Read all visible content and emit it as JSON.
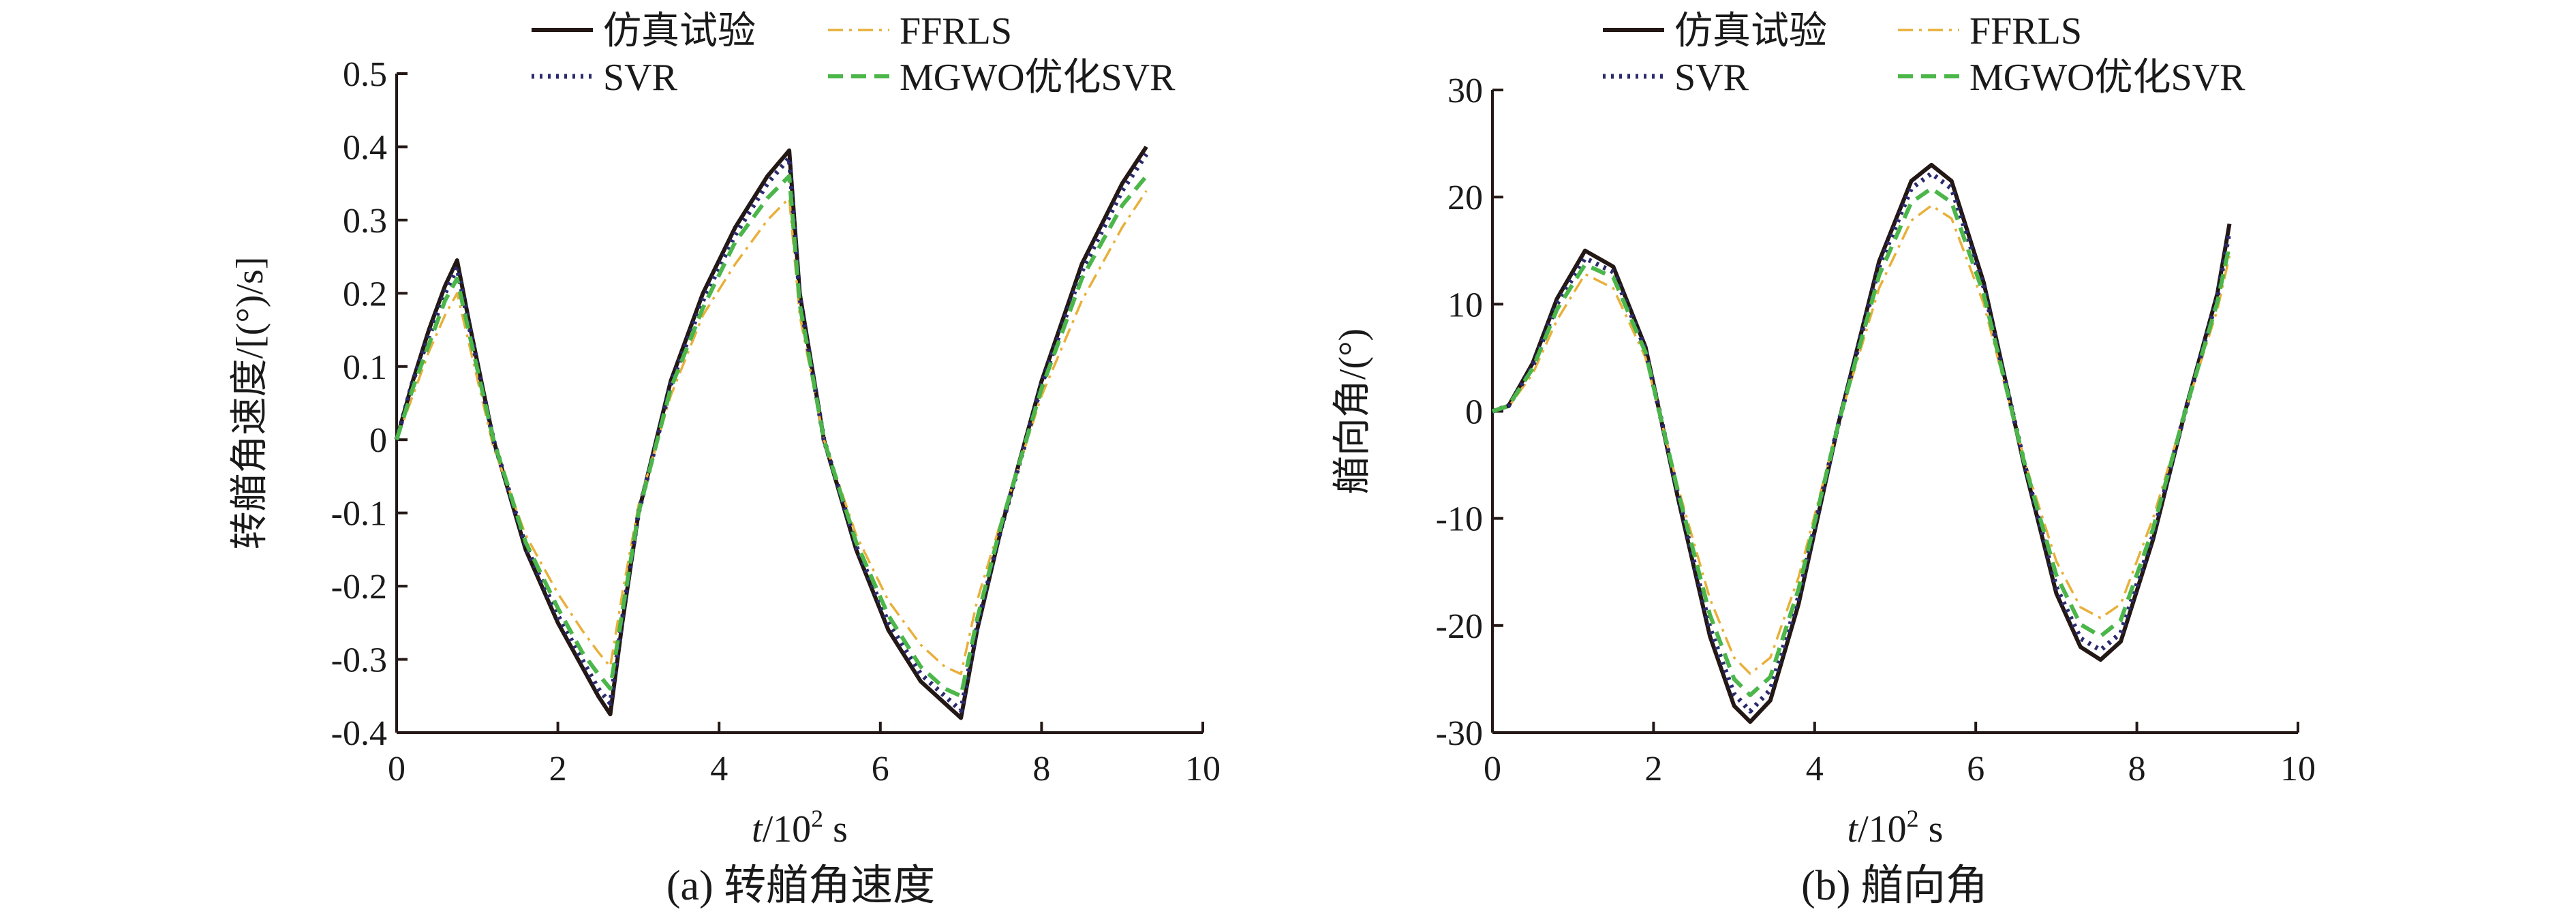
{
  "chart_data": [
    {
      "id": "a",
      "type": "line",
      "caption": "(a) 转艏角速度",
      "xlabel_italic": "t",
      "xlabel_rest": "/10",
      "xlabel_sup": "2",
      "xlabel_unit": " s",
      "ylabel": "转艏角速度/[(°)/s]",
      "xlim": [
        0,
        10
      ],
      "ylim": [
        -0.4,
        0.5
      ],
      "xticks": [
        "0",
        "2",
        "4",
        "6",
        "8",
        "10"
      ],
      "yticks": [
        "0.5",
        "0.4",
        "0.3",
        "0.2",
        "0.1",
        "0",
        "-0.1",
        "-0.2",
        "-0.3",
        "-0.4"
      ],
      "grid": false,
      "legend_position": "top",
      "series": [
        {
          "name": "仿真试验",
          "color": "#231815",
          "style": "solid",
          "x": [
            0,
            0.2,
            0.4,
            0.6,
            0.75,
            0.9,
            1.2,
            1.6,
            2.0,
            2.3,
            2.5,
            2.65,
            2.8,
            3.0,
            3.4,
            3.8,
            4.2,
            4.6,
            4.87,
            5.0,
            5.3,
            5.7,
            6.1,
            6.5,
            6.8,
            7.0,
            7.2,
            7.5,
            8.0,
            8.5,
            9.0,
            9.3
          ],
          "y": [
            0,
            0.08,
            0.15,
            0.21,
            0.245,
            0.16,
            0.0,
            -0.15,
            -0.25,
            -0.31,
            -0.35,
            -0.375,
            -0.25,
            -0.1,
            0.08,
            0.2,
            0.29,
            0.36,
            0.395,
            0.2,
            0.0,
            -0.15,
            -0.26,
            -0.33,
            -0.36,
            -0.38,
            -0.26,
            -0.12,
            0.08,
            0.24,
            0.35,
            0.4
          ]
        },
        {
          "name": "FFRLS",
          "color": "#e8b03a",
          "style": "dashdot",
          "x": [
            0,
            0.2,
            0.4,
            0.6,
            0.75,
            0.9,
            1.2,
            1.6,
            2.0,
            2.3,
            2.5,
            2.65,
            2.8,
            3.0,
            3.4,
            3.8,
            4.2,
            4.6,
            4.87,
            5.0,
            5.3,
            5.7,
            6.1,
            6.5,
            6.8,
            7.0,
            7.2,
            7.5,
            8.0,
            8.5,
            9.0,
            9.3
          ],
          "y": [
            0,
            0.06,
            0.12,
            0.17,
            0.2,
            0.13,
            -0.01,
            -0.13,
            -0.21,
            -0.26,
            -0.29,
            -0.31,
            -0.21,
            -0.09,
            0.06,
            0.17,
            0.24,
            0.3,
            0.33,
            0.17,
            0.0,
            -0.13,
            -0.22,
            -0.28,
            -0.31,
            -0.32,
            -0.22,
            -0.11,
            0.06,
            0.19,
            0.29,
            0.34
          ]
        },
        {
          "name": "SVR",
          "color": "#2b2a6e",
          "style": "dotted",
          "x": [
            0,
            0.2,
            0.4,
            0.6,
            0.75,
            0.9,
            1.2,
            1.6,
            2.0,
            2.3,
            2.5,
            2.65,
            2.8,
            3.0,
            3.4,
            3.8,
            4.2,
            4.6,
            4.87,
            5.0,
            5.3,
            5.7,
            6.1,
            6.5,
            6.8,
            7.0,
            7.2,
            7.5,
            8.0,
            8.5,
            9.0,
            9.3
          ],
          "y": [
            0,
            0.08,
            0.14,
            0.2,
            0.235,
            0.155,
            0.0,
            -0.145,
            -0.24,
            -0.3,
            -0.34,
            -0.36,
            -0.245,
            -0.1,
            0.075,
            0.19,
            0.28,
            0.35,
            0.385,
            0.195,
            0.0,
            -0.145,
            -0.25,
            -0.32,
            -0.35,
            -0.37,
            -0.255,
            -0.12,
            0.075,
            0.23,
            0.34,
            0.39
          ]
        },
        {
          "name": "MGWO优化SVR",
          "color": "#4bb649",
          "style": "dashed",
          "x": [
            0,
            0.2,
            0.4,
            0.6,
            0.75,
            0.9,
            1.2,
            1.6,
            2.0,
            2.3,
            2.5,
            2.65,
            2.8,
            3.0,
            3.4,
            3.8,
            4.2,
            4.6,
            4.87,
            5.0,
            5.3,
            5.7,
            6.1,
            6.5,
            6.8,
            7.0,
            7.2,
            7.5,
            8.0,
            8.5,
            9.0,
            9.3
          ],
          "y": [
            0,
            0.07,
            0.13,
            0.19,
            0.22,
            0.145,
            0.0,
            -0.14,
            -0.23,
            -0.29,
            -0.32,
            -0.34,
            -0.235,
            -0.1,
            0.07,
            0.18,
            0.27,
            0.33,
            0.36,
            0.185,
            0.0,
            -0.14,
            -0.24,
            -0.31,
            -0.34,
            -0.35,
            -0.245,
            -0.115,
            0.07,
            0.22,
            0.32,
            0.36
          ]
        }
      ]
    },
    {
      "id": "b",
      "type": "line",
      "caption": "(b) 艏向角",
      "xlabel_italic": "t",
      "xlabel_rest": "/10",
      "xlabel_sup": "2",
      "xlabel_unit": " s",
      "ylabel": "艏向角/(°)",
      "xlim": [
        0,
        10
      ],
      "ylim": [
        -30,
        30
      ],
      "xticks": [
        "0",
        "2",
        "4",
        "6",
        "8",
        "10"
      ],
      "yticks": [
        "30",
        "20",
        "10",
        "0",
        "-10",
        "-20",
        "-30"
      ],
      "grid": false,
      "legend_position": "top",
      "series": [
        {
          "name": "仿真试验",
          "color": "#231815",
          "style": "solid",
          "x": [
            0,
            0.2,
            0.5,
            0.8,
            1.15,
            1.5,
            1.9,
            2.3,
            2.7,
            3.0,
            3.2,
            3.45,
            3.8,
            4.3,
            4.8,
            5.2,
            5.45,
            5.7,
            6.1,
            6.6,
            7.0,
            7.3,
            7.55,
            7.8,
            8.2,
            8.6,
            9.0,
            9.15
          ],
          "y": [
            0,
            0.5,
            4.5,
            10.5,
            15,
            13.5,
            6,
            -8,
            -21,
            -27.5,
            -29,
            -27,
            -18,
            -1,
            14,
            21.5,
            23,
            21.5,
            12,
            -5,
            -17,
            -22,
            -23.2,
            -21.5,
            -12,
            0,
            11,
            17.5
          ]
        },
        {
          "name": "FFRLS",
          "color": "#e8b03a",
          "style": "dashdot",
          "x": [
            0,
            0.2,
            0.5,
            0.8,
            1.15,
            1.5,
            1.9,
            2.3,
            2.7,
            3.0,
            3.2,
            3.45,
            3.8,
            4.3,
            4.8,
            5.2,
            5.45,
            5.7,
            6.1,
            6.6,
            7.0,
            7.3,
            7.55,
            7.8,
            8.2,
            8.6,
            9.0,
            9.15
          ],
          "y": [
            0,
            0.4,
            3.5,
            8.5,
            12.8,
            11.5,
            5,
            -7,
            -17.5,
            -23,
            -24.5,
            -23,
            -15.5,
            -1,
            11.5,
            17.8,
            19.2,
            18,
            10,
            -4.5,
            -14,
            -18.3,
            -19.3,
            -18,
            -10,
            0,
            9.5,
            14.5
          ]
        },
        {
          "name": "SVR",
          "color": "#2b2a6e",
          "style": "dotted",
          "x": [
            0,
            0.2,
            0.5,
            0.8,
            1.15,
            1.5,
            1.9,
            2.3,
            2.7,
            3.0,
            3.2,
            3.45,
            3.8,
            4.3,
            4.8,
            5.2,
            5.45,
            5.7,
            6.1,
            6.6,
            7.0,
            7.3,
            7.55,
            7.8,
            8.2,
            8.6,
            9.0,
            9.15
          ],
          "y": [
            0,
            0.5,
            4.2,
            10,
            14.3,
            13,
            5.8,
            -7.7,
            -20.2,
            -26.4,
            -28,
            -26,
            -17.3,
            -1,
            13.5,
            20.8,
            22.2,
            20.8,
            11.6,
            -4.8,
            -16.4,
            -21.2,
            -22.3,
            -20.7,
            -11.6,
            0,
            10.7,
            16.8
          ]
        },
        {
          "name": "MGWO优化SVR",
          "color": "#4bb649",
          "style": "dashed",
          "x": [
            0,
            0.2,
            0.5,
            0.8,
            1.15,
            1.5,
            1.9,
            2.3,
            2.7,
            3.0,
            3.2,
            3.45,
            3.8,
            4.3,
            4.8,
            5.2,
            5.45,
            5.7,
            6.1,
            6.6,
            7.0,
            7.3,
            7.55,
            7.8,
            8.2,
            8.6,
            9.0,
            9.15
          ],
          "y": [
            0,
            0.5,
            4,
            9.5,
            13.7,
            12.5,
            5.5,
            -7.4,
            -19,
            -25,
            -26.5,
            -24.8,
            -16.6,
            -1,
            12.7,
            19.5,
            20.8,
            19.5,
            10.9,
            -4.7,
            -15.3,
            -19.9,
            -21,
            -19.5,
            -11,
            0,
            10.2,
            15.5
          ]
        }
      ]
    }
  ]
}
